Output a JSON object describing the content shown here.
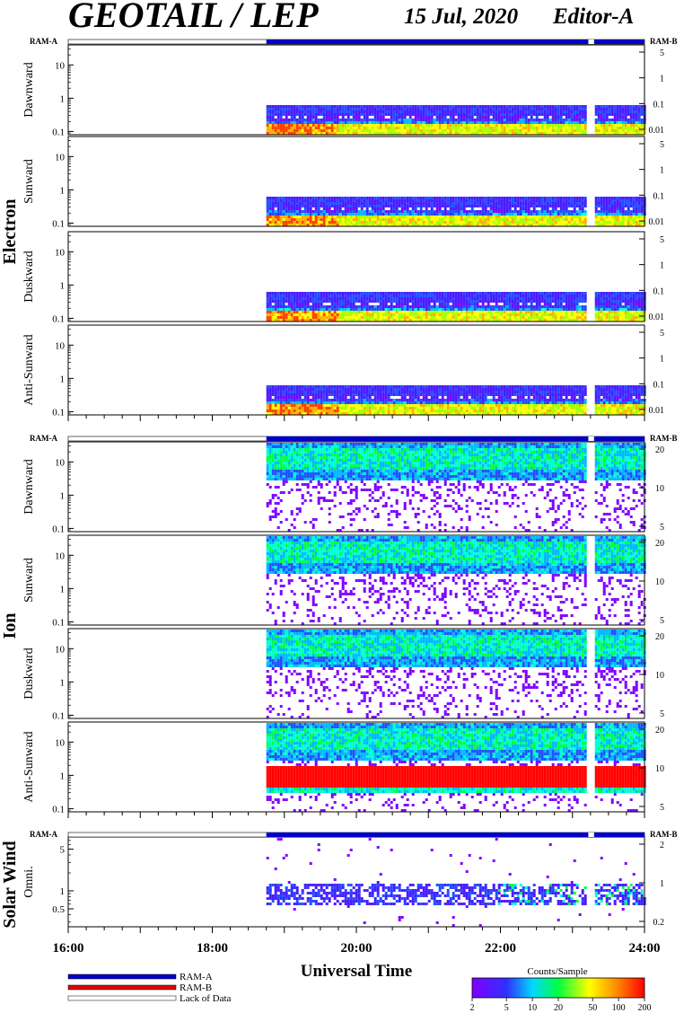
{
  "header": {
    "title": "GEOTAIL / LEP",
    "date": "15 Jul, 2020",
    "editor": "Editor-A"
  },
  "mode_bar": {
    "left_label": "RAM-A",
    "right_label": "RAM-B"
  },
  "chart_data": {
    "type": "heatmap",
    "xlabel": "Universal Time",
    "x_ticks": [
      "16:00",
      "18:00",
      "20:00",
      "22:00",
      "24:00"
    ],
    "x_range_hours": [
      16,
      24
    ],
    "data_start_hour": 18.75,
    "data_gap_hours": [
      [
        23.22,
        23.3
      ]
    ],
    "groups": [
      {
        "name": "Electron",
        "y_left_range": [
          0.08,
          40
        ],
        "y_left_ticks": [
          "10",
          "1",
          "0.1"
        ],
        "y_right_ticks": [
          "5",
          "1",
          "0.1",
          "0.01"
        ],
        "panels": [
          {
            "label": "Dawnward",
            "band_low": 0.1,
            "band_high": 0.5,
            "peak": 0.12
          },
          {
            "label": "Sunward",
            "band_low": 0.1,
            "band_high": 0.5,
            "peak": 0.12
          },
          {
            "label": "Duskward",
            "band_low": 0.1,
            "band_high": 0.5,
            "peak": 0.12
          },
          {
            "label": "Anti-Sunward",
            "band_low": 0.1,
            "band_high": 0.5,
            "peak": 0.12
          }
        ]
      },
      {
        "name": "Ion",
        "y_left_range": [
          0.08,
          40
        ],
        "y_left_ticks": [
          "10",
          "1",
          "0.1"
        ],
        "y_right_ticks": [
          "20",
          "10",
          "5"
        ],
        "panels": [
          {
            "label": "Dawnward",
            "band_low": 4,
            "band_high": 30,
            "peak": 12
          },
          {
            "label": "Sunward",
            "band_low": 4,
            "band_high": 30,
            "peak": 12
          },
          {
            "label": "Duskward",
            "band_low": 4,
            "band_high": 30,
            "peak": 12
          },
          {
            "label": "Anti-Sunward",
            "band_low": 4,
            "band_high": 30,
            "peak": 12,
            "hot_band": [
              0.5,
              2
            ]
          }
        ]
      },
      {
        "name": "Solar Wind",
        "y_left_range": [
          0.25,
          8
        ],
        "y_left_ticks": [
          "5",
          "1",
          "0.5"
        ],
        "y_right_ticks": [
          "2",
          "1",
          "0.2"
        ],
        "panels": [
          {
            "label": "Omni.",
            "band_low": 0.7,
            "band_high": 1.1,
            "peak": 0.9
          }
        ]
      }
    ],
    "legend": [
      {
        "label": "RAM-A",
        "color": "#0000c8"
      },
      {
        "label": "RAM-B",
        "color": "#e00000"
      },
      {
        "label": "Lack of Data",
        "color": "#ffffff"
      }
    ],
    "colorbar": {
      "title": "Counts/Sample",
      "ticks": [
        "2",
        "5",
        "10",
        "20",
        "50",
        "100",
        "200"
      ],
      "values": [
        2,
        5,
        10,
        20,
        50,
        100,
        200
      ]
    }
  }
}
